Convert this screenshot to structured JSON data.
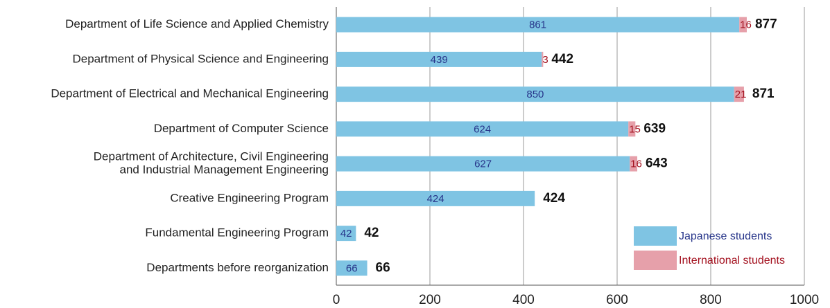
{
  "chart_data": {
    "type": "stacked-bar-horizontal",
    "categories": [
      "Department of Life Science and Applied Chemistry",
      "Department of Physical Science and Engineering",
      "Department of Electrical and Mechanical Engineering",
      "Department of Computer Science",
      [
        "Department of Architecture, Civil Engineering",
        "and Industrial Management Engineering"
      ],
      "Creative Engineering Program",
      "Fundamental Engineering Program",
      "Departments before reorganization"
    ],
    "series": [
      {
        "name": "Japanese students",
        "color": "#7fc4e3",
        "label_color": "#27358a",
        "values": [
          861,
          439,
          850,
          624,
          627,
          424,
          42,
          66
        ]
      },
      {
        "name": "International students",
        "color": "#e6a0aa",
        "label_color": "#a3101e",
        "values": [
          16,
          3,
          21,
          15,
          16,
          null,
          null,
          null
        ]
      }
    ],
    "totals": [
      877,
      442,
      871,
      639,
      643,
      424,
      42,
      66
    ],
    "xlim": [
      0,
      1000
    ],
    "xticks": [
      0,
      200,
      400,
      600,
      800,
      1000
    ],
    "grid": true,
    "legend": "lower right"
  }
}
